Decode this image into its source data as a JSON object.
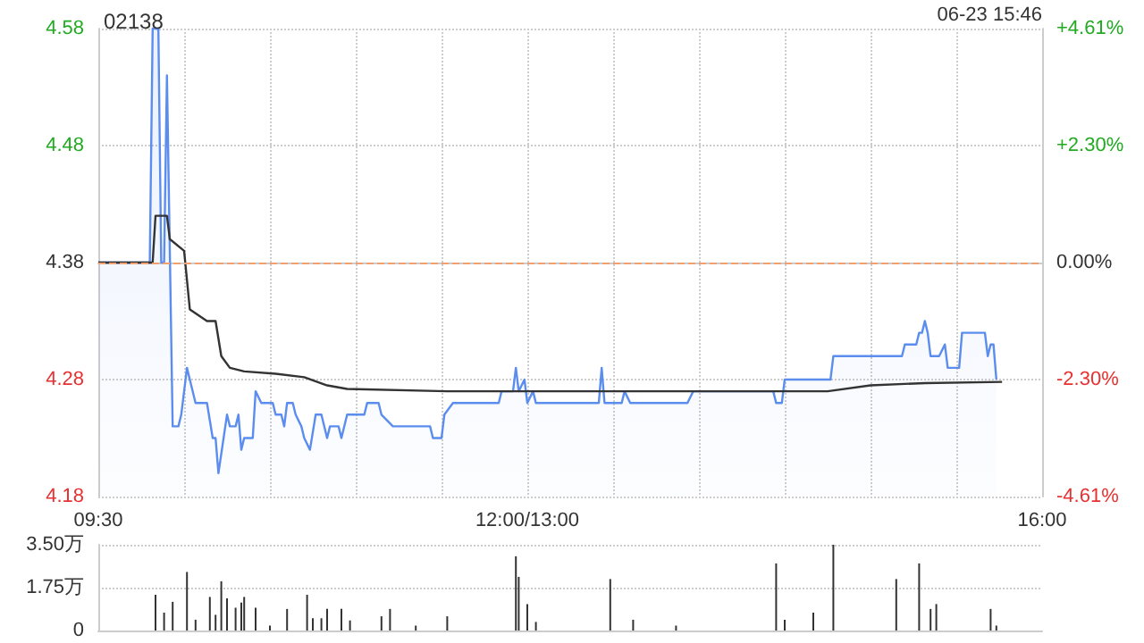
{
  "chart_data": [
    {
      "type": "line",
      "title": "02138",
      "annotations": [
        "06-23 15:46"
      ],
      "categories": [
        "09:30",
        null,
        null,
        null,
        null,
        null,
        null,
        null,
        null,
        null,
        null,
        null,
        null,
        null,
        null,
        null,
        null,
        null,
        null,
        null,
        null,
        null,
        null,
        null,
        null,
        null,
        null,
        null,
        null,
        null,
        null,
        null,
        null,
        null,
        null,
        null,
        null,
        null,
        null,
        null,
        null,
        null,
        null,
        null,
        null,
        null,
        null,
        null,
        null,
        null,
        null,
        null,
        null,
        null,
        null,
        null,
        null,
        null,
        null,
        null,
        null,
        null,
        null,
        null,
        null,
        null,
        null,
        null,
        null,
        null,
        null,
        null,
        null,
        null,
        null,
        null,
        null,
        null,
        null,
        null,
        null,
        null,
        null,
        null,
        null,
        null,
        null,
        null,
        null,
        null,
        null,
        null,
        null,
        null,
        null,
        null,
        null,
        null,
        null,
        null,
        null,
        null,
        null,
        null,
        null,
        null,
        null,
        null,
        null,
        null,
        null,
        null,
        null,
        null,
        null,
        null,
        null,
        null,
        null,
        null,
        null,
        null,
        null,
        null,
        null,
        null,
        null,
        null,
        null,
        null,
        null,
        null,
        null,
        null,
        null,
        null,
        null,
        null,
        null,
        null,
        null,
        null,
        null,
        null,
        null,
        null,
        null,
        null,
        null,
        null,
        "12:00/13:00",
        null,
        null,
        null,
        null,
        null,
        null,
        null,
        null,
        null,
        null,
        null,
        null,
        null,
        null,
        null,
        null,
        null,
        null,
        null,
        null,
        null,
        null,
        null,
        null,
        null,
        null,
        null,
        null,
        null,
        null,
        null,
        null,
        null,
        null,
        null,
        null,
        null,
        null,
        null,
        null,
        null,
        null,
        null,
        null,
        null,
        null,
        null,
        null,
        null,
        null,
        null,
        null,
        null,
        null,
        null,
        null,
        null,
        null,
        null,
        null,
        null,
        null,
        null,
        null,
        null,
        null,
        null,
        null,
        null,
        null,
        null,
        null,
        null,
        null,
        null,
        null,
        null,
        null,
        null,
        null,
        null,
        null,
        null,
        null,
        null,
        null,
        null,
        null,
        null,
        null,
        null,
        null,
        null,
        null,
        null,
        null,
        null,
        null,
        null,
        null,
        null,
        null,
        null,
        null,
        null,
        null,
        null,
        null,
        null,
        null,
        null,
        null,
        null,
        null,
        null,
        null,
        null,
        null,
        null,
        null,
        null,
        null,
        null,
        null,
        null,
        null,
        null,
        null,
        null,
        null,
        null,
        null,
        null,
        null,
        null,
        null,
        null,
        null,
        null,
        null,
        null,
        null,
        null,
        null,
        null,
        null,
        null,
        null,
        null,
        null,
        null,
        null,
        null,
        null,
        null,
        null,
        null,
        null,
        null,
        null,
        null,
        null,
        null,
        null,
        null,
        null,
        null,
        null,
        null,
        null,
        null,
        null,
        null,
        null,
        null,
        null,
        null,
        null,
        null,
        "16:00"
      ],
      "ylim": [
        4.18,
        4.58
      ],
      "yticks": [
        4.18,
        4.28,
        4.38,
        4.48,
        4.58
      ],
      "y2lim": [
        -4.61,
        4.61
      ],
      "y2ticks": [
        {
          "value": -4.61,
          "label": "-4.61%"
        },
        {
          "value": -2.3,
          "label": "-2.30%"
        },
        {
          "value": 0,
          "label": "0.00%"
        },
        {
          "value": 2.3,
          "label": "+2.30%"
        },
        {
          "value": 4.61,
          "label": "+4.61%"
        }
      ],
      "ref_lines": [
        {
          "axis": "y",
          "value": 4.38,
          "color": "#f0a070",
          "line_style": "dashed"
        }
      ],
      "grid": true,
      "marker": "none",
      "series": [
        {
          "type": "area",
          "color": "#5b8def",
          "values": [
            4.38,
            null,
            null,
            null,
            null,
            null,
            null,
            null,
            null,
            null,
            null,
            null,
            null,
            null,
            null,
            null,
            null,
            null,
            4.38,
            4.58,
            null,
            4.58,
            4.38,
            4.38,
            4.54,
            null,
            4.24,
            null,
            4.24,
            4.25,
            null,
            4.29,
            4.28,
            null,
            4.26,
            null,
            null,
            null,
            4.26,
            null,
            4.23,
            4.23,
            4.2,
            null,
            null,
            4.25,
            4.24,
            null,
            4.24,
            4.25,
            4.22,
            4.23,
            null,
            null,
            4.23,
            4.27,
            null,
            4.26,
            null,
            null,
            null,
            4.26,
            4.25,
            null,
            4.25,
            4.24,
            4.26,
            null,
            4.26,
            4.25,
            null,
            4.24,
            4.23,
            null,
            4.22,
            null,
            4.25,
            null,
            4.25,
            null,
            4.23,
            4.24,
            null,
            null,
            4.24,
            4.23,
            null,
            4.25,
            null,
            null,
            null,
            null,
            null,
            4.25,
            4.26,
            null,
            null,
            null,
            4.26,
            4.25,
            null,
            null,
            null,
            4.24,
            null,
            null,
            null,
            null,
            null,
            null,
            null,
            null,
            null,
            null,
            null,
            null,
            4.24,
            4.23,
            null,
            null,
            4.23,
            4.25,
            null,
            null,
            4.26,
            null,
            null,
            null,
            null,
            null,
            null,
            null,
            null,
            null,
            null,
            null,
            null,
            null,
            null,
            null,
            4.26,
            4.27,
            null,
            null,
            null,
            4.27,
            4.29,
            4.27,
            null,
            4.28,
            4.26,
            null,
            4.27,
            4.26,
            null,
            null,
            null,
            null,
            null,
            null,
            null,
            null,
            null,
            null,
            null,
            null,
            null,
            null,
            null,
            null,
            null,
            null,
            null,
            null,
            null,
            4.26,
            4.29,
            4.26,
            null,
            null,
            null,
            null,
            null,
            4.26,
            4.27,
            null,
            4.26,
            null,
            null,
            null,
            null,
            null,
            null,
            null,
            null,
            null,
            null,
            null,
            null,
            null,
            null,
            null,
            null,
            null,
            null,
            null,
            4.26,
            null,
            4.27,
            null,
            null,
            null,
            null,
            null,
            null,
            null,
            null,
            null,
            null,
            null,
            null,
            null,
            null,
            null,
            null,
            null,
            null,
            null,
            null,
            null,
            null,
            null,
            null,
            null,
            null,
            null,
            4.27,
            4.26,
            null,
            4.26,
            4.28,
            null,
            null,
            null,
            null,
            null,
            null,
            null,
            null,
            null,
            null,
            null,
            null,
            null,
            null,
            null,
            4.28,
            4.3,
            null,
            null,
            null,
            null,
            null,
            null,
            null,
            null,
            null,
            null,
            null,
            null,
            null,
            null,
            null,
            null,
            null,
            null,
            null,
            null,
            null,
            null,
            null,
            4.3,
            4.31,
            null,
            null,
            null,
            4.31,
            4.32,
            4.32,
            4.33,
            4.32,
            4.3,
            null,
            null,
            4.3,
            null,
            4.31,
            4.29,
            null,
            null,
            null,
            4.29,
            4.32,
            null,
            null,
            null,
            null,
            null,
            null,
            null,
            4.32,
            4.3,
            4.31,
            4.31,
            4.28,
            null,
            null,
            null,
            null,
            null,
            null,
            null,
            null,
            null,
            null,
            null,
            null,
            null,
            null,
            null,
            null
          ]
        },
        {
          "type": "line",
          "color": "#333333",
          "values": [
            4.38,
            null,
            null,
            null,
            null,
            null,
            null,
            null,
            null,
            null,
            null,
            null,
            null,
            null,
            null,
            null,
            null,
            null,
            null,
            4.38,
            4.42,
            null,
            null,
            null,
            4.42,
            4.4,
            null,
            null,
            null,
            null,
            4.39,
            null,
            4.34,
            null,
            null,
            null,
            null,
            null,
            4.33,
            null,
            null,
            4.33,
            null,
            4.3,
            null,
            null,
            4.29,
            null,
            null,
            null,
            null,
            4.287,
            null,
            null,
            null,
            null,
            null,
            null,
            null,
            null,
            null,
            null,
            4.285,
            null,
            null,
            null,
            null,
            null,
            null,
            null,
            null,
            null,
            4.282,
            null,
            null,
            null,
            null,
            null,
            null,
            null,
            4.275,
            null,
            null,
            null,
            null,
            null,
            null,
            4.272,
            null,
            null,
            null,
            null,
            null,
            null,
            null,
            null,
            null,
            null,
            null,
            null,
            null,
            null,
            null,
            null,
            null,
            null,
            null,
            null,
            null,
            null,
            null,
            null,
            null,
            null,
            null,
            null,
            null,
            null,
            null,
            null,
            null,
            null,
            4.27,
            null,
            null,
            null,
            null,
            null,
            null,
            null,
            null,
            null,
            null,
            null,
            null,
            null,
            null,
            null,
            null,
            null,
            null,
            null,
            null,
            null,
            null,
            null,
            null,
            null,
            null,
            null,
            null,
            null,
            null,
            4.27,
            null,
            null,
            null,
            null,
            null,
            null,
            null,
            null,
            null,
            null,
            null,
            null,
            null,
            null,
            null,
            null,
            null,
            null,
            null,
            null,
            null,
            null,
            null,
            null,
            null,
            null,
            null,
            null,
            null,
            null,
            null,
            null,
            null,
            null,
            null,
            null,
            null,
            null,
            null,
            null,
            null,
            null,
            null,
            null,
            null,
            null,
            null,
            null,
            null,
            null,
            null,
            null,
            null,
            null,
            null,
            null,
            null,
            null,
            null,
            null,
            null,
            null,
            null,
            null,
            null,
            null,
            null,
            null,
            null,
            null,
            null,
            null,
            null,
            null,
            null,
            null,
            null,
            null,
            null,
            null,
            null,
            null,
            null,
            null,
            null,
            null,
            null,
            null,
            null,
            null,
            null,
            null,
            null,
            null,
            null,
            null,
            null,
            null,
            null,
            null,
            null,
            4.27,
            null,
            null,
            null,
            null,
            null,
            null,
            null,
            null,
            null,
            null,
            null,
            null,
            null,
            null,
            4.275,
            null,
            null,
            null,
            null,
            null,
            null,
            null,
            null,
            null,
            null,
            null,
            null,
            null,
            null,
            null,
            null,
            null,
            null,
            4.277,
            null,
            null,
            null,
            null,
            null,
            null,
            null,
            null,
            null,
            null,
            null,
            null,
            null,
            null,
            null,
            null,
            null,
            null,
            null,
            null,
            null,
            null,
            null,
            null,
            null,
            null,
            4.278,
            null,
            null,
            null,
            null,
            null,
            null,
            null,
            null,
            null,
            null,
            null,
            null,
            null,
            null
          ]
        }
      ]
    },
    {
      "type": "bar",
      "tick_labels": "y",
      "grid": "y",
      "categories": [
        null,
        null,
        null,
        null,
        null,
        null,
        null,
        null,
        null,
        null,
        null,
        null,
        null,
        null,
        null,
        null,
        null,
        null,
        null,
        null,
        null,
        null,
        null,
        null,
        null,
        null,
        null,
        null,
        null,
        null,
        null,
        null,
        null,
        null,
        null,
        null,
        null,
        null,
        null,
        null,
        null,
        null,
        null,
        null,
        null,
        null,
        null,
        null,
        null,
        null,
        null,
        null,
        null,
        null,
        null,
        null,
        null,
        null,
        null,
        null,
        null,
        null,
        null,
        null,
        null,
        null,
        null,
        null,
        null,
        null,
        null,
        null,
        null,
        null,
        null,
        null,
        null,
        null,
        null,
        null,
        null,
        null,
        null,
        null,
        null,
        null,
        null,
        null,
        null,
        null,
        null,
        null,
        null,
        null,
        null,
        null,
        null,
        null,
        null,
        null,
        null,
        null,
        null,
        null,
        null,
        null,
        null,
        null,
        null,
        null,
        null,
        null,
        null,
        null,
        null,
        null,
        null,
        null,
        null,
        null,
        null,
        null,
        null,
        null,
        null,
        null,
        null,
        null,
        null,
        null,
        null,
        null,
        null,
        null,
        null,
        null,
        null,
        null,
        null,
        null,
        null,
        null,
        null,
        null,
        null,
        null,
        null,
        null,
        null,
        null,
        null,
        null,
        null,
        null,
        null,
        null,
        null,
        null,
        null,
        null,
        null,
        null,
        null,
        null,
        null,
        null,
        null,
        null,
        null,
        null,
        null,
        null,
        null,
        null,
        null,
        null,
        null,
        null,
        null,
        null,
        null,
        null,
        null,
        null,
        null,
        null,
        null,
        null,
        null,
        null,
        null,
        null,
        null,
        null,
        null,
        null,
        null,
        null,
        null,
        null,
        null,
        null,
        null,
        null,
        null,
        null,
        null,
        null,
        null,
        null,
        null,
        null,
        null,
        null,
        null,
        null,
        null,
        null,
        null,
        null,
        null,
        null,
        null,
        null,
        null,
        null,
        null,
        null,
        null,
        null,
        null,
        null,
        null,
        null,
        null,
        null,
        null,
        null,
        null,
        null,
        null,
        null,
        null,
        null,
        null,
        null,
        null,
        null,
        null,
        null,
        null,
        null,
        null,
        null,
        null,
        null,
        null,
        null,
        null,
        null,
        null,
        null,
        null,
        null,
        null,
        null,
        null,
        null,
        null,
        null,
        null,
        null,
        null,
        null,
        null,
        null,
        null,
        null,
        null,
        null,
        null,
        null,
        null,
        null,
        null,
        null,
        null,
        null,
        null,
        null,
        null,
        null,
        null,
        null,
        null,
        null,
        null,
        null,
        null,
        null,
        null,
        null,
        null,
        null,
        null,
        null,
        null,
        null,
        null,
        null,
        null,
        null,
        null,
        null,
        null,
        null,
        null,
        null,
        null,
        null,
        null,
        null,
        null,
        null,
        null,
        null,
        null,
        null,
        null,
        null,
        null
      ],
      "ylim": [
        0,
        3.5
      ],
      "yticks": [
        {
          "value": 0,
          "label": "0"
        },
        {
          "value": 1.75,
          "label": "1.75万"
        },
        {
          "value": 3.5,
          "label": "3.50万"
        }
      ],
      "series": [
        {
          "color": "#333333",
          "values": [
            null,
            null,
            null,
            null,
            null,
            null,
            null,
            null,
            null,
            null,
            null,
            null,
            null,
            null,
            null,
            null,
            null,
            null,
            null,
            null,
            1.46,
            null,
            null,
            0.73,
            null,
            null,
            1.17,
            null,
            null,
            null,
            null,
            2.39,
            null,
            null,
            0.44,
            null,
            null,
            null,
            null,
            1.37,
            null,
            0.64,
            null,
            2.01,
            null,
            1.31,
            null,
            null,
            0.93,
            null,
            1.14,
            1.37,
            null,
            null,
            null,
            0.93,
            null,
            null,
            null,
            null,
            0.2,
            null,
            null,
            null,
            null,
            null,
            0.88,
            null,
            null,
            null,
            null,
            null,
            null,
            1.46,
            null,
            0.5,
            null,
            null,
            0.5,
            null,
            0.88,
            null,
            null,
            null,
            null,
            0.88,
            null,
            null,
            0.41,
            null,
            null,
            null,
            null,
            null,
            null,
            null,
            null,
            null,
            null,
            0.58,
            null,
            null,
            0.88,
            null,
            null,
            null,
            null,
            null,
            null,
            null,
            null,
            0.2,
            null,
            null,
            null,
            null,
            null,
            null,
            null,
            null,
            null,
            null,
            0.58,
            null,
            null,
            null,
            null,
            null,
            null,
            null,
            null,
            null,
            null,
            null,
            null,
            null,
            null,
            null,
            null,
            null,
            null,
            null,
            null,
            null,
            null,
            null,
            3.03,
            2.19,
            null,
            null,
            1.08,
            null,
            null,
            0.35,
            null,
            null,
            null,
            null,
            null,
            null,
            null,
            null,
            null,
            null,
            null,
            null,
            null,
            null,
            null,
            null,
            null,
            null,
            null,
            null,
            null,
            null,
            null,
            null,
            null,
            2.1,
            null,
            null,
            null,
            null,
            null,
            null,
            null,
            0.44,
            null,
            null,
            null,
            null,
            null,
            null,
            null,
            null,
            null,
            null,
            null,
            null,
            null,
            null,
            0.2,
            null,
            null,
            null,
            null,
            null,
            null,
            null,
            null,
            null,
            null,
            null,
            null,
            null,
            null,
            null,
            null,
            null,
            null,
            null,
            null,
            null,
            null,
            null,
            null,
            null,
            null,
            null,
            null,
            null,
            null,
            null,
            null,
            null,
            null,
            2.74,
            null,
            null,
            0.44,
            null,
            null,
            null,
            null,
            null,
            null,
            null,
            null,
            null,
            0.73,
            null,
            null,
            null,
            null,
            null,
            null,
            3.5,
            null,
            null,
            null,
            null,
            null,
            null,
            null,
            null,
            null,
            null,
            null,
            null,
            null,
            null,
            null,
            null,
            null,
            null,
            null,
            null,
            null,
            2.1,
            null,
            null,
            null,
            null,
            null,
            null,
            null,
            2.74,
            null,
            null,
            null,
            0.88,
            null,
            1.08,
            null,
            null,
            null,
            null,
            null,
            null,
            null,
            null,
            null,
            null,
            null,
            null,
            null,
            null,
            null,
            null,
            null,
            null,
            0.88,
            null,
            0.2,
            null,
            null,
            null,
            null,
            null,
            null,
            null,
            null,
            null,
            null,
            null,
            null,
            null,
            null,
            null,
            null
          ]
        }
      ]
    }
  ]
}
